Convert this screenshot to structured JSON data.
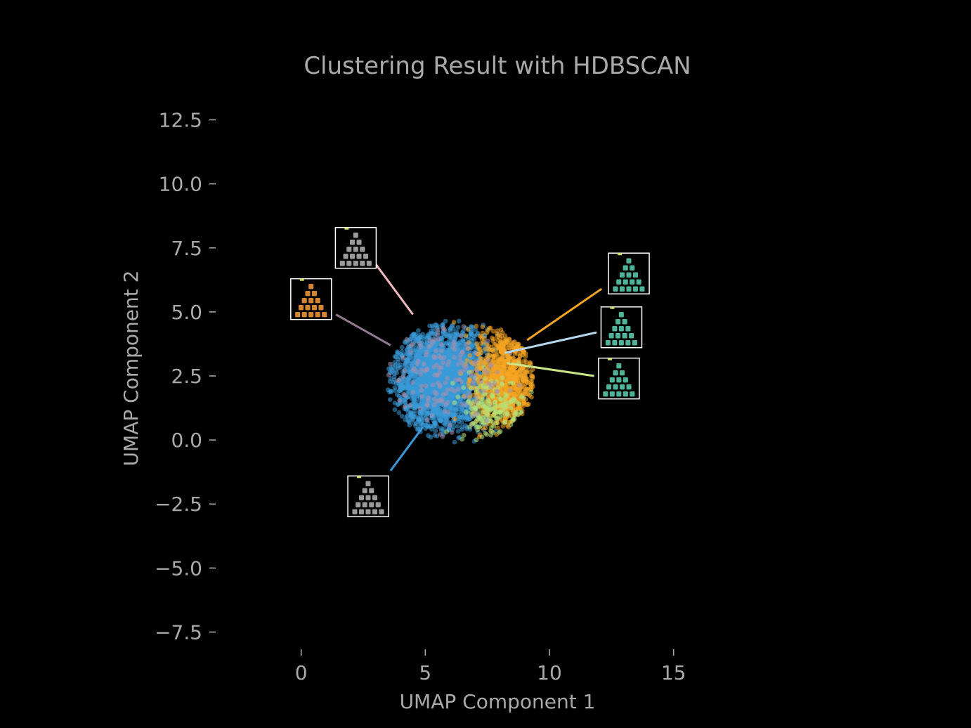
{
  "chart_data": {
    "type": "scatter",
    "title": "Clustering Result with HDBSCAN",
    "xlabel": "UMAP Component 1",
    "ylabel": "UMAP Component 2",
    "xlim": [
      -3.5,
      19.0
    ],
    "ylim": [
      -8.2,
      13.2
    ],
    "xticks": [
      0,
      5,
      10,
      15
    ],
    "xtick_labels": [
      "0",
      "5",
      "10",
      "15"
    ],
    "yticks": [
      12.5,
      10.0,
      7.5,
      5.0,
      2.5,
      0.0,
      -2.5,
      -5.0,
      -7.5
    ],
    "ytick_labels": [
      "12.5",
      "10.0",
      "7.5",
      "5.0",
      "2.5",
      "0.0",
      "−2.5",
      "−5.0",
      "−7.5"
    ],
    "grid": false,
    "background": "#000000",
    "cluster_region": {
      "center": [
        6.4,
        2.3
      ],
      "radius_x": 3.0,
      "radius_y": 2.4
    },
    "series": [
      {
        "color": "#3a9ad9",
        "center": [
          5.6,
          2.4
        ],
        "spread": [
          1.7,
          1.8
        ],
        "count": 2400
      },
      {
        "color": "#f5a623",
        "center": [
          8.2,
          2.4
        ],
        "spread": [
          1.1,
          1.9
        ],
        "count": 900
      },
      {
        "color": "#b5e37a",
        "center": [
          7.7,
          1.2
        ],
        "spread": [
          1.2,
          1.2
        ],
        "count": 180
      },
      {
        "color": "#a88fb0",
        "center": [
          5.4,
          2.6
        ],
        "spread": [
          2.2,
          2.0
        ],
        "count": 160
      }
    ],
    "annotations": [
      {
        "thumbnail": "gray-pyramid-icon",
        "thumb_at": [
          2.2,
          7.5
        ],
        "line_from": [
          2.9,
          7.0
        ],
        "line_to": [
          4.5,
          4.9
        ],
        "line_color": "#f2b8c0",
        "tint": "#9a9a9a"
      },
      {
        "thumbnail": "orange-pyramid-icon",
        "thumb_at": [
          0.4,
          5.5
        ],
        "line_from": [
          1.4,
          4.9
        ],
        "line_to": [
          3.6,
          3.7
        ],
        "line_color": "#8f7a8f",
        "tint": "#d3862f"
      },
      {
        "thumbnail": "teal-pyramid-icon",
        "thumb_at": [
          13.2,
          6.5
        ],
        "line_from": [
          12.1,
          5.9
        ],
        "line_to": [
          9.1,
          3.9
        ],
        "line_color": "#f5a623",
        "tint": "#4fb39a"
      },
      {
        "thumbnail": "teal-pyramid-icon",
        "thumb_at": [
          12.9,
          4.4
        ],
        "line_from": [
          11.9,
          4.2
        ],
        "line_to": [
          8.2,
          3.4
        ],
        "line_color": "#b8d8f0",
        "tint": "#4fb39a"
      },
      {
        "thumbnail": "teal-pyramid-icon",
        "thumb_at": [
          12.8,
          2.4
        ],
        "line_from": [
          11.8,
          2.5
        ],
        "line_to": [
          8.3,
          3.0
        ],
        "line_color": "#c9e68a",
        "tint": "#4fb39a"
      },
      {
        "thumbnail": "gray-pyramid-icon",
        "thumb_at": [
          2.7,
          -2.2
        ],
        "line_from": [
          3.6,
          -1.2
        ],
        "line_to": [
          4.9,
          0.5
        ],
        "line_color": "#3a9ad9",
        "tint": "#9a9a9a"
      }
    ]
  }
}
